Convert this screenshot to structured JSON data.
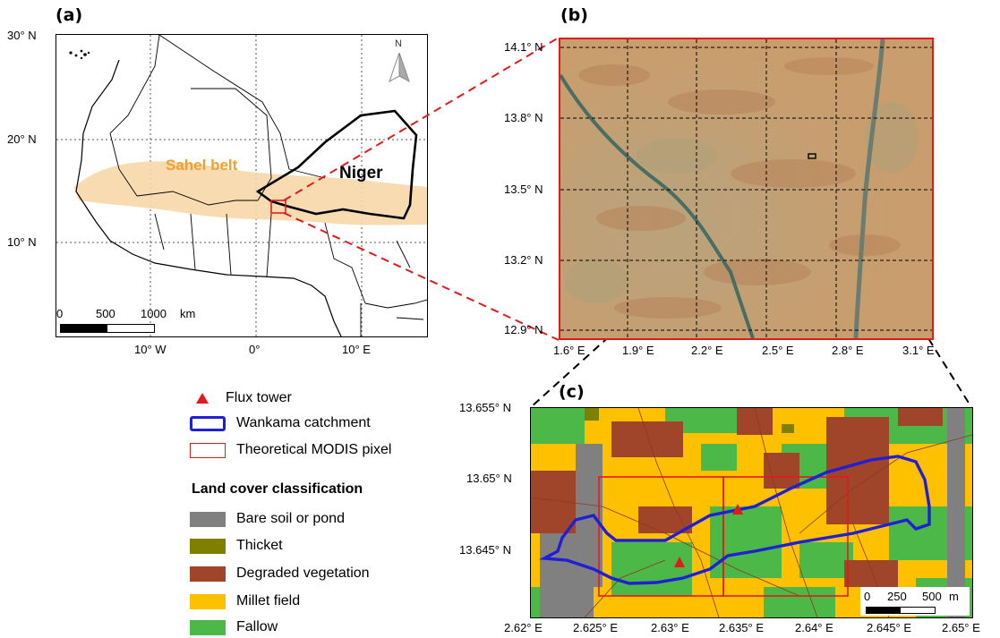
{
  "panels": {
    "a": {
      "label": "(a)"
    },
    "b": {
      "label": "(b)"
    },
    "c": {
      "label": "(c)"
    }
  },
  "panel_a": {
    "lat_ticks": [
      "30° N",
      "20° N",
      "10° N"
    ],
    "lon_ticks": [
      "10° W",
      "0°",
      "10° E"
    ],
    "region_labels": {
      "sahel": "Sahel belt",
      "niger": "Niger"
    },
    "north_label": "N",
    "scalebar": {
      "labels": [
        "0",
        "500",
        "1000",
        "km"
      ]
    },
    "colors": {
      "sahel_band": "#f8d7a8",
      "sahel_text": "#f0a030",
      "study_box": "#e31a1c"
    }
  },
  "panel_b": {
    "lat_ticks": [
      "14.1° N",
      "13.8° N",
      "13.5° N",
      "13.2° N",
      "12.9° N"
    ],
    "lon_ticks": [
      "1.6° E",
      "1.9° E",
      "2.2° E",
      "2.5° E",
      "2.8° E",
      "3.1° E"
    ]
  },
  "panel_c": {
    "lat_ticks": [
      "13.655° N",
      "13.65° N",
      "13.645° N"
    ],
    "lon_ticks": [
      "2.62° E",
      "2.625° E",
      "2.63° E",
      "2.635° E",
      "2.64° E",
      "2.645° E",
      "2.65° E"
    ],
    "scalebar": {
      "labels": [
        "0",
        "250",
        "500",
        "m"
      ]
    }
  },
  "legend": {
    "flux_tower": "Flux tower",
    "catchment": "Wankama catchment",
    "modis": "Theoretical MODIS pixel",
    "heading": "Land cover classification",
    "classes": [
      {
        "name": "Bare soil or pond",
        "color": "#808080"
      },
      {
        "name": "Thicket",
        "color": "#808000"
      },
      {
        "name": "Degraded vegetation",
        "color": "#a0442a"
      },
      {
        "name": "Millet field",
        "color": "#ffc000"
      },
      {
        "name": "Fallow",
        "color": "#4cb848"
      }
    ]
  }
}
